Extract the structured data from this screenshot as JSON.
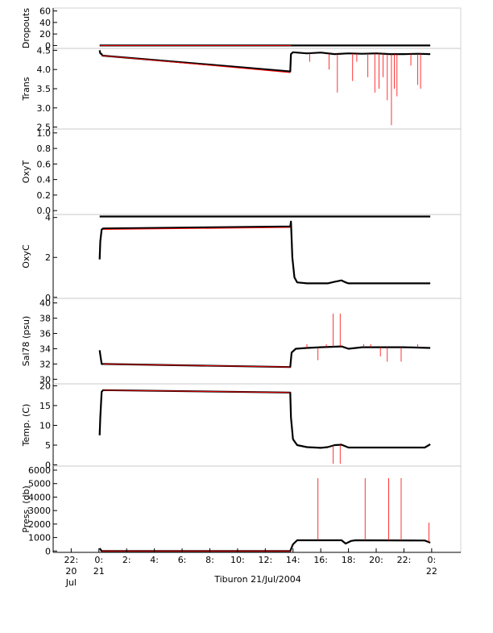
{
  "chart_data": [
    {
      "type": "line",
      "ylabel": "Dropouts",
      "yticks": [
        "60",
        "40",
        "20",
        "0"
      ],
      "ytick_values": [
        60,
        40,
        20,
        0
      ],
      "ylim": [
        -5,
        65
      ],
      "series": [
        {
          "style": "raw",
          "points": [
            [
              0.05,
              0
            ],
            [
              0.08,
              0
            ],
            [
              13.85,
              0
            ],
            [
              14.0,
              0
            ],
            [
              23.9,
              0
            ]
          ]
        },
        {
          "style": "interp",
          "points": [
            [
              0.1,
              0
            ],
            [
              13.85,
              0
            ]
          ]
        }
      ]
    },
    {
      "type": "line",
      "ylabel": "Trans",
      "yticks": [
        "4.5",
        "4.0",
        "3.5",
        "3.0",
        "2.5"
      ],
      "ytick_values": [
        4.5,
        4.0,
        3.5,
        3.0,
        2.5
      ],
      "ylim": [
        2.45,
        4.55
      ],
      "series": [
        {
          "style": "raw",
          "points": [
            [
              0.05,
              4.5
            ],
            [
              0.1,
              4.42
            ],
            [
              0.2,
              4.4
            ],
            [
              0.25,
              4.36
            ],
            [
              13.8,
              3.95
            ],
            [
              13.85,
              4.4
            ],
            [
              14.0,
              4.45
            ],
            [
              15.0,
              4.42
            ],
            [
              16.0,
              4.44
            ],
            [
              17.0,
              4.4
            ],
            [
              18.0,
              4.42
            ],
            [
              19.0,
              4.41
            ],
            [
              20.0,
              4.42
            ],
            [
              21.0,
              4.4
            ],
            [
              22.0,
              4.4
            ],
            [
              23.0,
              4.41
            ],
            [
              23.9,
              4.4
            ]
          ]
        },
        {
          "style": "interp",
          "points": [
            [
              0.2,
              4.36
            ],
            [
              13.8,
              3.92
            ]
          ]
        },
        {
          "style": "spikes",
          "points": [
            [
              15.2,
              4.2
            ],
            [
              16.6,
              4.0
            ],
            [
              17.2,
              3.4
            ],
            [
              18.3,
              3.7
            ],
            [
              18.6,
              4.2
            ],
            [
              19.4,
              3.8
            ],
            [
              19.9,
              3.4
            ],
            [
              20.2,
              3.5
            ],
            [
              20.5,
              3.8
            ],
            [
              20.8,
              3.2
            ],
            [
              21.1,
              2.55
            ],
            [
              21.3,
              3.5
            ],
            [
              21.5,
              3.3
            ],
            [
              22.5,
              4.1
            ],
            [
              23.0,
              3.6
            ],
            [
              23.2,
              3.5
            ]
          ]
        }
      ]
    },
    {
      "type": "line",
      "ylabel": "OxyT",
      "yticks": [
        "1.0",
        "0.8",
        "0.6",
        "0.4",
        "0.2",
        "0.0"
      ],
      "ytick_values": [
        1.0,
        0.8,
        0.6,
        0.4,
        0.2,
        0.0
      ],
      "ylim": [
        -0.05,
        1.05
      ],
      "series": []
    },
    {
      "type": "line",
      "ylabel": "OxyC",
      "yticks": [
        "4",
        "2",
        "0"
      ],
      "ytick_values": [
        4,
        2,
        0
      ],
      "ylim": [
        -0.05,
        4.15
      ],
      "series": [
        {
          "style": "raw",
          "points": [
            [
              0.05,
              1.9
            ],
            [
              0.1,
              2.8
            ],
            [
              0.2,
              3.4
            ],
            [
              0.3,
              3.45
            ],
            [
              13.8,
              3.55
            ],
            [
              13.85,
              3.8
            ],
            [
              13.95,
              2.0
            ],
            [
              14.1,
              1.0
            ],
            [
              14.3,
              0.75
            ],
            [
              15.0,
              0.7
            ],
            [
              16.5,
              0.7
            ],
            [
              17.0,
              0.78
            ],
            [
              17.5,
              0.85
            ],
            [
              17.8,
              0.75
            ],
            [
              18.0,
              0.7
            ],
            [
              23.9,
              0.7
            ]
          ]
        },
        {
          "style": "interp",
          "points": [
            [
              0.3,
              3.4
            ],
            [
              13.8,
              3.5
            ]
          ]
        },
        {
          "style": "flat",
          "points": [
            [
              0.05,
              4.05
            ],
            [
              0.1,
              4.05
            ],
            [
              14.0,
              4.05
            ],
            [
              23.9,
              4.05
            ]
          ]
        }
      ]
    },
    {
      "type": "line",
      "ylabel": "Sal78 (psu)",
      "yticks": [
        "40",
        "38",
        "36",
        "34",
        "32",
        "30"
      ],
      "ytick_values": [
        40,
        38,
        36,
        34,
        32,
        30
      ],
      "ylim": [
        29.4,
        40.6
      ],
      "series": [
        {
          "style": "raw",
          "points": [
            [
              0.05,
              33.8
            ],
            [
              0.1,
              33.2
            ],
            [
              0.2,
              32.0
            ],
            [
              0.3,
              32.0
            ],
            [
              13.8,
              31.6
            ],
            [
              13.9,
              33.5
            ],
            [
              14.2,
              34.0
            ],
            [
              15.0,
              34.1
            ],
            [
              16.0,
              34.2
            ],
            [
              17.5,
              34.3
            ],
            [
              18.0,
              34.0
            ],
            [
              19.0,
              34.2
            ],
            [
              20.0,
              34.2
            ],
            [
              21.0,
              34.2
            ],
            [
              22.0,
              34.2
            ],
            [
              23.9,
              34.1
            ]
          ]
        },
        {
          "style": "interp",
          "points": [
            [
              0.3,
              32.0
            ],
            [
              13.8,
              31.6
            ]
          ]
        },
        {
          "style": "spikes",
          "points": [
            [
              15.0,
              34.6
            ],
            [
              15.8,
              32.5
            ],
            [
              16.4,
              34.6
            ],
            [
              16.9,
              38.6
            ],
            [
              17.4,
              38.6
            ],
            [
              19.1,
              34.6
            ],
            [
              19.6,
              34.6
            ],
            [
              20.3,
              33.0
            ],
            [
              20.8,
              32.3
            ],
            [
              21.8,
              32.3
            ],
            [
              23.0,
              34.6
            ]
          ]
        }
      ]
    },
    {
      "type": "line",
      "ylabel": "Temp. (C)",
      "yticks": [
        "20",
        "15",
        "10",
        "5",
        "0"
      ],
      "ytick_values": [
        20,
        15,
        10,
        5,
        0
      ],
      "ylim": [
        -0.3,
        20.5
      ],
      "series": [
        {
          "style": "raw",
          "points": [
            [
              0.05,
              7.5
            ],
            [
              0.1,
              12.0
            ],
            [
              0.2,
              18.5
            ],
            [
              0.3,
              18.9
            ],
            [
              13.8,
              18.3
            ],
            [
              13.85,
              12.0
            ],
            [
              14.0,
              6.5
            ],
            [
              14.3,
              5.0
            ],
            [
              15.0,
              4.5
            ],
            [
              16.0,
              4.3
            ],
            [
              16.5,
              4.5
            ],
            [
              17.0,
              5.0
            ],
            [
              17.5,
              5.1
            ],
            [
              18.0,
              4.4
            ],
            [
              23.5,
              4.4
            ],
            [
              23.9,
              5.2
            ]
          ]
        },
        {
          "style": "interp",
          "points": [
            [
              0.3,
              18.9
            ],
            [
              13.8,
              18.3
            ]
          ]
        },
        {
          "style": "spikes",
          "points": [
            [
              16.9,
              0.3
            ],
            [
              17.4,
              0.3
            ]
          ]
        }
      ]
    },
    {
      "type": "line",
      "ylabel": "Press. (db)",
      "yticks": [
        "6000",
        "5000",
        "4000",
        "3000",
        "2000",
        "1000",
        "0"
      ],
      "ytick_values": [
        6000,
        5000,
        4000,
        3000,
        2000,
        1000,
        0
      ],
      "ylim": [
        -100,
        6300
      ],
      "series": [
        {
          "style": "raw",
          "points": [
            [
              0.05,
              200
            ],
            [
              0.2,
              0
            ],
            [
              13.8,
              0
            ],
            [
              14.0,
              500
            ],
            [
              14.3,
              800
            ],
            [
              16.0,
              800
            ],
            [
              17.5,
              800
            ],
            [
              17.8,
              550
            ],
            [
              18.2,
              750
            ],
            [
              18.5,
              800
            ],
            [
              23.5,
              780
            ],
            [
              23.9,
              620
            ]
          ]
        },
        {
          "style": "interp",
          "points": [
            [
              0.2,
              0
            ],
            [
              13.8,
              0
            ]
          ]
        },
        {
          "style": "spikes",
          "points": [
            [
              15.8,
              5400
            ],
            [
              19.2,
              5400
            ],
            [
              20.9,
              5400
            ],
            [
              21.8,
              5400
            ],
            [
              23.8,
              2100
            ]
          ]
        }
      ]
    }
  ],
  "x_axis": {
    "ticks": [
      {
        "hour": -2,
        "top": "22:",
        "line2": "20",
        "line3": "Jul"
      },
      {
        "hour": 0,
        "top": "0:",
        "line2": "21",
        "line3": ""
      },
      {
        "hour": 2,
        "top": "2:",
        "line2": "",
        "line3": ""
      },
      {
        "hour": 4,
        "top": "4:",
        "line2": "",
        "line3": ""
      },
      {
        "hour": 6,
        "top": "6:",
        "line2": "",
        "line3": ""
      },
      {
        "hour": 8,
        "top": "8:",
        "line2": "",
        "line3": ""
      },
      {
        "hour": 10,
        "top": "10:",
        "line2": "",
        "line3": ""
      },
      {
        "hour": 12,
        "top": "12:",
        "line2": "",
        "line3": ""
      },
      {
        "hour": 14,
        "top": "14:",
        "line2": "",
        "line3": ""
      },
      {
        "hour": 16,
        "top": "16:",
        "line2": "",
        "line3": ""
      },
      {
        "hour": 18,
        "top": "18:",
        "line2": "",
        "line3": ""
      },
      {
        "hour": 20,
        "top": "20:",
        "line2": "",
        "line3": ""
      },
      {
        "hour": 22,
        "top": "22:",
        "line2": "",
        "line3": ""
      },
      {
        "hour": 24,
        "top": "0:",
        "line2": "22",
        "line3": ""
      }
    ],
    "xlim": [
      -3.3,
      26.1
    ],
    "title": "Tiburon 21/Jul/2004"
  },
  "colors": {
    "raw": "#000000",
    "interp": "#ff0000",
    "axis": "#000000",
    "frame": "#c8c8c8"
  }
}
